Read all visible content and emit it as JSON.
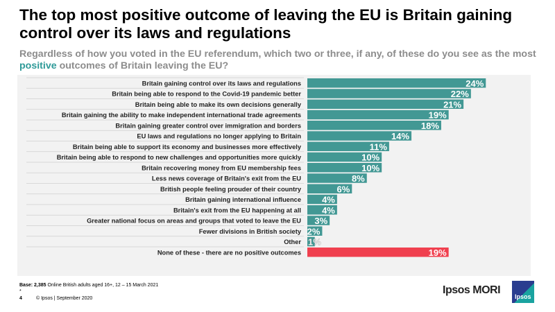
{
  "title": "The top most positive outcome of leaving the EU is Britain gaining control over its laws and regulations",
  "subtitle": {
    "before": "Regardless of how you voted in the EU referendum, which two or three, if any, of these do you see as the most ",
    "highlight": "positive",
    "after": " outcomes of Britain leaving the EU?"
  },
  "chart_data": {
    "type": "bar",
    "orientation": "horizontal",
    "categories": [
      "Britain gaining control over its laws and regulations",
      "Britain being able to respond to the Covid-19 pandemic better",
      "Britain being able to make its own decisions generally",
      "Britain gaining the ability to make independent international trade agreements",
      "Britain gaining greater control over immigration and borders",
      "EU laws and regulations no longer applying to Britain",
      "Britain being able to support its economy and businesses more effectively",
      "Britain being able to respond to new challenges and opportunities more quickly",
      "Britain recovering money from EU membership fees",
      "Less news coverage of Britain's exit from the EU",
      "British people feeling prouder of their country",
      "Britain gaining international influence",
      "Britain's exit from the EU happening at all",
      "Greater national focus on areas and groups that voted to leave the EU",
      "Fewer divisions in British society",
      "Other",
      "None of these - there are no positive outcomes"
    ],
    "values": [
      24,
      22,
      21,
      19,
      18,
      14,
      11,
      10,
      10,
      8,
      6,
      4,
      4,
      3,
      2,
      1,
      19
    ],
    "data_labels": [
      "24%",
      "22%",
      "21%",
      "19%",
      "18%",
      "14%",
      "11%",
      "10%",
      "10%",
      "8%",
      "6%",
      "4%",
      "4%",
      "3%",
      "2%",
      "1%",
      "19%"
    ],
    "colors": {
      "bar": "#429894",
      "highlight": "#f0404f"
    },
    "highlight_index": 16,
    "xlim": [
      0,
      25
    ],
    "grid": false
  },
  "footer": {
    "base_label": "Base:",
    "base_value": "2,385",
    "base_text": "Online British adults aged 16+, 12 – 15 March 2021",
    "asterisk": "*",
    "page": "4",
    "copyright": "© Ipsos | September 2020"
  },
  "logo": {
    "text": "Ipsos MORI",
    "badge": "Ipsos"
  }
}
